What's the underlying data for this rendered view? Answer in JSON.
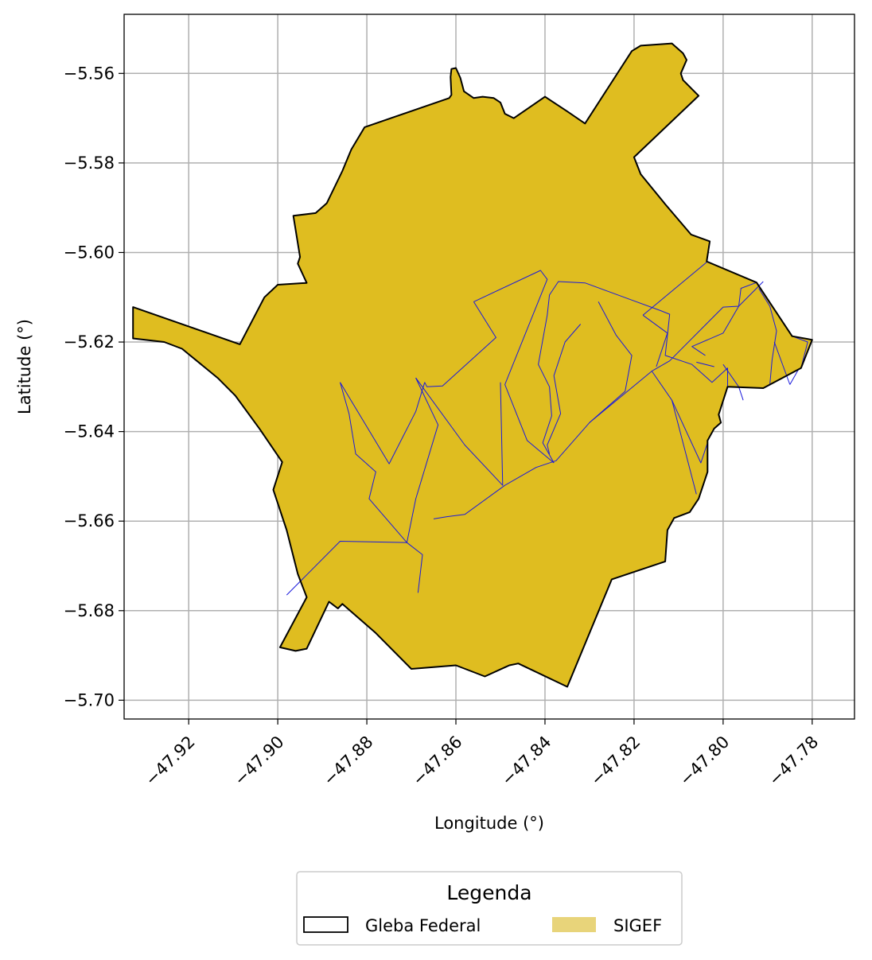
{
  "chart_data": {
    "type": "map",
    "xlabel": "Longitude (°)",
    "ylabel": "Latitude (°)",
    "xlim": [
      -47.9345,
      -47.7705
    ],
    "ylim": [
      -5.7042,
      -5.5468
    ],
    "grid": true,
    "x_ticks": [
      {
        "value": -47.92,
        "label": "−47.92"
      },
      {
        "value": -47.9,
        "label": "−47.90"
      },
      {
        "value": -47.88,
        "label": "−47.88"
      },
      {
        "value": -47.86,
        "label": "−47.86"
      },
      {
        "value": -47.84,
        "label": "−47.84"
      },
      {
        "value": -47.82,
        "label": "−47.82"
      },
      {
        "value": -47.8,
        "label": "−47.80"
      },
      {
        "value": -47.78,
        "label": "−47.78"
      }
    ],
    "y_ticks": [
      {
        "value": -5.56,
        "label": "−5.56"
      },
      {
        "value": -5.58,
        "label": "−5.58"
      },
      {
        "value": -5.6,
        "label": "−5.60"
      },
      {
        "value": -5.62,
        "label": "−5.62"
      },
      {
        "value": -5.64,
        "label": "−5.64"
      },
      {
        "value": -5.66,
        "label": "−5.66"
      },
      {
        "value": -5.68,
        "label": "−5.68"
      },
      {
        "value": -5.7,
        "label": "−5.70"
      }
    ],
    "colors": {
      "gleba_outline": "#000000",
      "sigef_fill": "#DFBD20",
      "sigef_parcel_lines": "#1a1adc",
      "legend_sigef_swatch": "#E8D47A",
      "grid": "#b0b0b0"
    },
    "legend": {
      "title": "Legenda",
      "placement": "bottom-center",
      "entries": [
        {
          "label": "Gleba Federal",
          "style": "outline"
        },
        {
          "label": "SIGEF",
          "style": "fill"
        }
      ]
    },
    "layers": [
      {
        "name": "Gleba Federal",
        "geometry": "polygon",
        "coordinates": [
          [
            -47.9325,
            -5.6122
          ],
          [
            -47.9085,
            -5.6205
          ],
          [
            -47.903,
            -5.61
          ],
          [
            -47.9,
            -5.6072
          ],
          [
            -47.8935,
            -5.6068
          ],
          [
            -47.8955,
            -5.6025
          ],
          [
            -47.895,
            -5.601
          ],
          [
            -47.8965,
            -5.5918
          ],
          [
            -47.8915,
            -5.5912
          ],
          [
            -47.889,
            -5.589
          ],
          [
            -47.8855,
            -5.5818
          ],
          [
            -47.8835,
            -5.577
          ],
          [
            -47.8805,
            -5.572
          ],
          [
            -47.8615,
            -5.5655
          ],
          [
            -47.861,
            -5.5648
          ],
          [
            -47.8612,
            -5.5608
          ],
          [
            -47.861,
            -5.559
          ],
          [
            -47.86,
            -5.5588
          ],
          [
            -47.859,
            -5.561
          ],
          [
            -47.8582,
            -5.564
          ],
          [
            -47.856,
            -5.5655
          ],
          [
            -47.854,
            -5.5652
          ],
          [
            -47.8515,
            -5.5655
          ],
          [
            -47.85,
            -5.5665
          ],
          [
            -47.849,
            -5.569
          ],
          [
            -47.847,
            -5.57
          ],
          [
            -47.84,
            -5.5652
          ],
          [
            -47.835,
            -5.5685
          ],
          [
            -47.831,
            -5.5712
          ],
          [
            -47.8205,
            -5.555
          ],
          [
            -47.8185,
            -5.5538
          ],
          [
            -47.8115,
            -5.5533
          ],
          [
            -47.809,
            -5.5555
          ],
          [
            -47.8082,
            -5.557
          ],
          [
            -47.8095,
            -5.56
          ],
          [
            -47.809,
            -5.5615
          ],
          [
            -47.8055,
            -5.565
          ],
          [
            -47.82,
            -5.5787
          ],
          [
            -47.8185,
            -5.5825
          ],
          [
            -47.813,
            -5.5892
          ],
          [
            -47.8072,
            -5.596
          ],
          [
            -47.803,
            -5.5975
          ],
          [
            -47.8037,
            -5.602
          ],
          [
            -47.7925,
            -5.6067
          ],
          [
            -47.7845,
            -5.6187
          ],
          [
            -47.78,
            -5.6195
          ],
          [
            -47.7825,
            -5.6258
          ],
          [
            -47.791,
            -5.6303
          ],
          [
            -47.799,
            -5.63
          ],
          [
            -47.801,
            -5.6362
          ],
          [
            -47.8005,
            -5.638
          ],
          [
            -47.802,
            -5.6393
          ],
          [
            -47.8035,
            -5.642
          ],
          [
            -47.8035,
            -5.649
          ],
          [
            -47.8055,
            -5.655
          ],
          [
            -47.8075,
            -5.658
          ],
          [
            -47.811,
            -5.6593
          ],
          [
            -47.8125,
            -5.662
          ],
          [
            -47.813,
            -5.669
          ],
          [
            -47.825,
            -5.673
          ],
          [
            -47.835,
            -5.697
          ],
          [
            -47.846,
            -5.6918
          ],
          [
            -47.848,
            -5.6922
          ],
          [
            -47.8535,
            -5.6947
          ],
          [
            -47.86,
            -5.6922
          ],
          [
            -47.87,
            -5.693
          ],
          [
            -47.878,
            -5.685
          ],
          [
            -47.8855,
            -5.6785
          ],
          [
            -47.8865,
            -5.6795
          ],
          [
            -47.8885,
            -5.678
          ],
          [
            -47.8935,
            -5.6885
          ],
          [
            -47.896,
            -5.689
          ],
          [
            -47.8995,
            -5.6882
          ],
          [
            -47.8935,
            -5.677
          ],
          [
            -47.8955,
            -5.6718
          ],
          [
            -47.898,
            -5.662
          ],
          [
            -47.901,
            -5.653
          ],
          [
            -47.899,
            -5.6468
          ],
          [
            -47.904,
            -5.6395
          ],
          [
            -47.9095,
            -5.632
          ],
          [
            -47.9135,
            -5.628
          ],
          [
            -47.9215,
            -5.6215
          ],
          [
            -47.9255,
            -5.62
          ],
          [
            -47.9325,
            -5.6192
          ],
          [
            -47.9325,
            -5.6122
          ]
        ]
      },
      {
        "name": "SIGEF",
        "geometry": "parcel boundaries",
        "lines": [
          [
            [
              -47.856,
              -5.611
            ],
            [
              -47.841,
              -5.604
            ],
            [
              -47.8395,
              -5.606
            ],
            [
              -47.849,
              -5.6295
            ],
            [
              -47.844,
              -5.642
            ],
            [
              -47.838,
              -5.647
            ]
          ],
          [
            [
              -47.856,
              -5.611
            ],
            [
              -47.851,
              -5.619
            ],
            [
              -47.863,
              -5.6298
            ],
            [
              -47.8665,
              -5.63
            ],
            [
              -47.867,
              -5.629
            ]
          ],
          [
            [
              -47.867,
              -5.629
            ],
            [
              -47.869,
              -5.6355
            ],
            [
              -47.875,
              -5.6472
            ],
            [
              -47.886,
              -5.629
            ]
          ],
          [
            [
              -47.886,
              -5.629
            ],
            [
              -47.884,
              -5.636
            ],
            [
              -47.8825,
              -5.645
            ],
            [
              -47.878,
              -5.649
            ],
            [
              -47.8795,
              -5.655
            ],
            [
              -47.871,
              -5.6648
            ]
          ],
          [
            [
              -47.871,
              -5.6648
            ],
            [
              -47.869,
              -5.655
            ],
            [
              -47.864,
              -5.6385
            ],
            [
              -47.869,
              -5.628
            ]
          ],
          [
            [
              -47.869,
              -5.628
            ],
            [
              -47.858,
              -5.643
            ],
            [
              -47.8495,
              -5.652
            ],
            [
              -47.85,
              -5.629
            ]
          ],
          [
            [
              -47.871,
              -5.6648
            ],
            [
              -47.886,
              -5.6645
            ],
            [
              -47.898,
              -5.6765
            ]
          ],
          [
            [
              -47.871,
              -5.6648
            ],
            [
              -47.8675,
              -5.6675
            ],
            [
              -47.8685,
              -5.676
            ]
          ],
          [
            [
              -47.865,
              -5.6595
            ],
            [
              -47.862,
              -5.659
            ],
            [
              -47.858,
              -5.6585
            ],
            [
              -47.849,
              -5.652
            ],
            [
              -47.842,
              -5.648
            ],
            [
              -47.8375,
              -5.6465
            ],
            [
              -47.83,
              -5.638
            ],
            [
              -47.816,
              -5.6265
            ],
            [
              -47.812,
              -5.6242
            ],
            [
              -47.8,
              -5.6122
            ],
            [
              -47.7965,
              -5.612
            ],
            [
              -47.791,
              -5.6065
            ]
          ],
          [
            [
              -47.838,
              -5.647
            ],
            [
              -47.8405,
              -5.6425
            ],
            [
              -47.8385,
              -5.6365
            ],
            [
              -47.839,
              -5.63
            ],
            [
              -47.8415,
              -5.625
            ],
            [
              -47.8395,
              -5.614
            ],
            [
              -47.839,
              -5.6095
            ],
            [
              -47.837,
              -5.6065
            ],
            [
              -47.831,
              -5.6068
            ],
            [
              -47.82,
              -5.6108
            ],
            [
              -47.814,
              -5.613
            ],
            [
              -47.812,
              -5.6138
            ],
            [
              -47.8125,
              -5.6185
            ]
          ],
          [
            [
              -47.828,
              -5.611
            ],
            [
              -47.824,
              -5.6185
            ],
            [
              -47.8205,
              -5.623
            ],
            [
              -47.822,
              -5.631
            ],
            [
              -47.83,
              -5.638
            ]
          ],
          [
            [
              -47.832,
              -5.616
            ],
            [
              -47.8355,
              -5.62
            ],
            [
              -47.838,
              -5.6275
            ],
            [
              -47.8365,
              -5.636
            ],
            [
              -47.8395,
              -5.643
            ],
            [
              -47.839,
              -5.645
            ]
          ],
          [
            [
              -47.818,
              -5.614
            ],
            [
              -47.8125,
              -5.618
            ],
            [
              -47.815,
              -5.6255
            ]
          ],
          [
            [
              -47.816,
              -5.6265
            ],
            [
              -47.8115,
              -5.633
            ],
            [
              -47.805,
              -5.647
            ],
            [
              -47.8035,
              -5.6425
            ]
          ],
          [
            [
              -47.8115,
              -5.633
            ],
            [
              -47.806,
              -5.654
            ]
          ],
          [
            [
              -47.8125,
              -5.6185
            ],
            [
              -47.813,
              -5.623
            ],
            [
              -47.807,
              -5.625
            ],
            [
              -47.8025,
              -5.629
            ],
            [
              -47.799,
              -5.6258
            ],
            [
              -47.799,
              -5.63
            ]
          ],
          [
            [
              -47.8,
              -5.625
            ],
            [
              -47.7965,
              -5.63
            ],
            [
              -47.7955,
              -5.633
            ]
          ],
          [
            [
              -47.804,
              -5.623
            ],
            [
              -47.807,
              -5.621
            ],
            [
              -47.8,
              -5.618
            ],
            [
              -47.7965,
              -5.612
            ]
          ],
          [
            [
              -47.806,
              -5.6245
            ],
            [
              -47.802,
              -5.6255
            ]
          ],
          [
            [
              -47.7965,
              -5.612
            ],
            [
              -47.796,
              -5.608
            ],
            [
              -47.7925,
              -5.6067
            ]
          ],
          [
            [
              -47.792,
              -5.608
            ],
            [
              -47.7895,
              -5.612
            ],
            [
              -47.788,
              -5.6175
            ],
            [
              -47.789,
              -5.624
            ],
            [
              -47.7895,
              -5.6295
            ]
          ],
          [
            [
              -47.7885,
              -5.62
            ],
            [
              -47.785,
              -5.6295
            ]
          ],
          [
            [
              -47.785,
              -5.6295
            ],
            [
              -47.783,
              -5.626
            ]
          ],
          [
            [
              -47.7825,
              -5.6258
            ],
            [
              -47.781,
              -5.62
            ],
            [
              -47.7845,
              -5.6187
            ]
          ],
          [
            [
              -47.8035,
              -5.602
            ],
            [
              -47.818,
              -5.614
            ]
          ]
        ]
      }
    ]
  }
}
